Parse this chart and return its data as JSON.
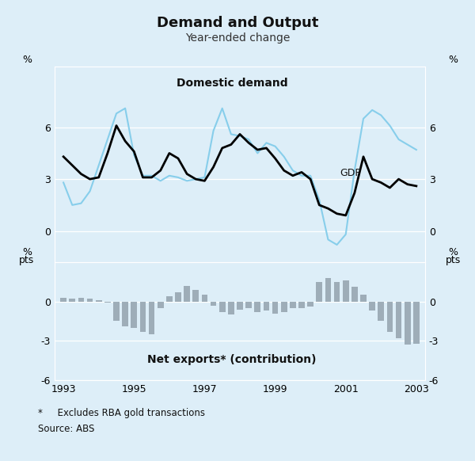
{
  "title": "Demand and Output",
  "subtitle": "Year-ended change",
  "background_color": "#ddeef8",
  "top_panel": {
    "ylabel_left": "%",
    "ylabel_right": "%",
    "ylim": [
      -1.8,
      9.5
    ],
    "yticks": [
      0,
      3,
      6
    ],
    "label_domestic": "Domestic demand",
    "label_gdp": "GDP",
    "gdp": {
      "x": [
        1993.0,
        1993.25,
        1993.5,
        1993.75,
        1994.0,
        1994.25,
        1994.5,
        1994.75,
        1995.0,
        1995.25,
        1995.5,
        1995.75,
        1996.0,
        1996.25,
        1996.5,
        1996.75,
        1997.0,
        1997.25,
        1997.5,
        1997.75,
        1998.0,
        1998.25,
        1998.5,
        1998.75,
        1999.0,
        1999.25,
        1999.5,
        1999.75,
        2000.0,
        2000.25,
        2000.5,
        2000.75,
        2001.0,
        2001.25,
        2001.5,
        2001.75,
        2002.0,
        2002.25,
        2002.5,
        2002.75,
        2003.0
      ],
      "y": [
        4.3,
        3.8,
        3.3,
        3.0,
        3.1,
        4.5,
        6.1,
        5.2,
        4.6,
        3.1,
        3.1,
        3.5,
        4.5,
        4.2,
        3.3,
        3.0,
        2.9,
        3.7,
        4.8,
        5.0,
        5.6,
        5.1,
        4.7,
        4.8,
        4.2,
        3.5,
        3.2,
        3.4,
        3.0,
        1.5,
        1.3,
        1.0,
        0.9,
        2.2,
        4.3,
        3.0,
        2.8,
        2.5,
        3.0,
        2.7,
        2.6
      ],
      "color": "#000000",
      "linewidth": 2.0
    },
    "domestic": {
      "x": [
        1993.0,
        1993.25,
        1993.5,
        1993.75,
        1994.0,
        1994.25,
        1994.5,
        1994.75,
        1995.0,
        1995.25,
        1995.5,
        1995.75,
        1996.0,
        1996.25,
        1996.5,
        1996.75,
        1997.0,
        1997.25,
        1997.5,
        1997.75,
        1998.0,
        1998.25,
        1998.5,
        1998.75,
        1999.0,
        1999.25,
        1999.5,
        1999.75,
        2000.0,
        2000.25,
        2000.5,
        2000.75,
        2001.0,
        2001.25,
        2001.5,
        2001.75,
        2002.0,
        2002.25,
        2002.5,
        2002.75,
        2003.0
      ],
      "y": [
        2.8,
        1.5,
        1.6,
        2.3,
        3.8,
        5.3,
        6.8,
        7.1,
        4.4,
        3.2,
        3.2,
        2.9,
        3.2,
        3.1,
        2.9,
        3.0,
        3.1,
        5.8,
        7.1,
        5.6,
        5.5,
        5.3,
        4.5,
        5.1,
        4.9,
        4.3,
        3.5,
        3.2,
        3.2,
        1.8,
        -0.5,
        -0.8,
        -0.2,
        3.5,
        6.5,
        7.0,
        6.7,
        6.1,
        5.3,
        5.0,
        4.7
      ],
      "color": "#87ceeb",
      "linewidth": 1.5
    }
  },
  "bottom_panel": {
    "ylabel_left": "%\npts",
    "ylabel_right": "%\npts",
    "ylim": [
      -6,
      3
    ],
    "yticks": [
      -6,
      -3,
      0
    ],
    "label": "Net exports* (contribution)",
    "bar_color": "#9eadb8",
    "x": [
      1993.0,
      1993.25,
      1993.5,
      1993.75,
      1994.0,
      1994.25,
      1994.5,
      1994.75,
      1995.0,
      1995.25,
      1995.5,
      1995.75,
      1996.0,
      1996.25,
      1996.5,
      1996.75,
      1997.0,
      1997.25,
      1997.5,
      1997.75,
      1998.0,
      1998.25,
      1998.5,
      1998.75,
      1999.0,
      1999.25,
      1999.5,
      1999.75,
      2000.0,
      2000.25,
      2000.5,
      2000.75,
      2001.0,
      2001.25,
      2001.5,
      2001.75,
      2002.0,
      2002.25,
      2002.5,
      2002.75,
      2003.0
    ],
    "y": [
      0.3,
      0.2,
      0.3,
      0.2,
      0.1,
      -0.1,
      -1.5,
      -1.9,
      -2.0,
      -2.3,
      -2.5,
      -0.5,
      0.4,
      0.7,
      1.2,
      0.9,
      0.5,
      -0.3,
      -0.8,
      -1.0,
      -0.6,
      -0.5,
      -0.8,
      -0.7,
      -0.9,
      -0.8,
      -0.5,
      -0.5,
      -0.4,
      1.5,
      1.8,
      1.5,
      1.6,
      1.1,
      0.5,
      -0.7,
      -1.5,
      -2.3,
      -2.8,
      -3.3,
      -3.2
    ]
  },
  "xlim": [
    1992.75,
    2003.25
  ],
  "xticks": [
    1993,
    1995,
    1997,
    1999,
    2001,
    2003
  ],
  "xticklabels": [
    "1993",
    "1995",
    "1997",
    "1999",
    "2001",
    "2003"
  ],
  "footnote1": "*     Excludes RBA gold transactions",
  "footnote2": "Source: ABS"
}
